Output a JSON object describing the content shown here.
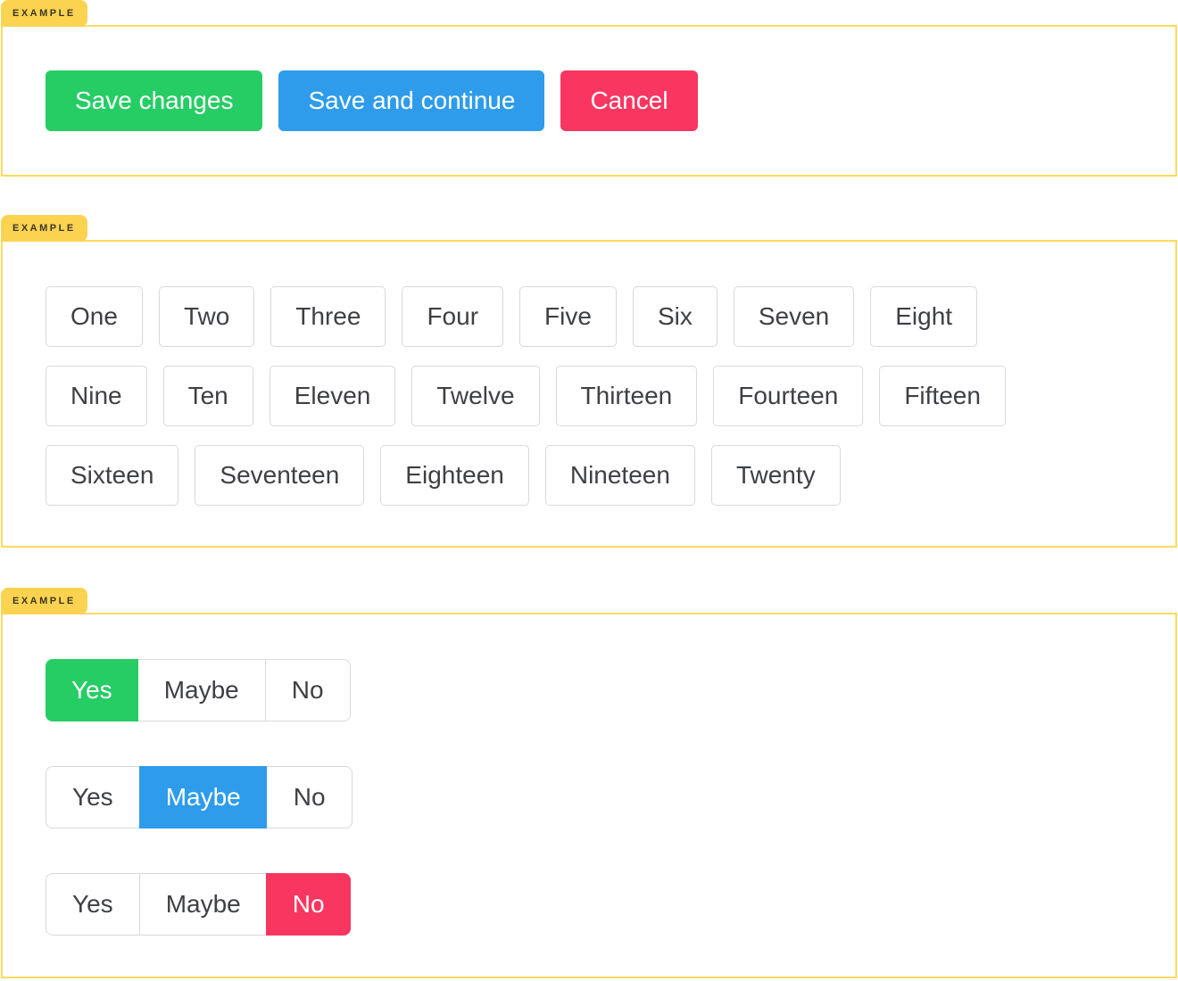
{
  "example_label": "EXAMPLE",
  "colors": {
    "tag_background": "#FBD350",
    "tag_text": "#3B3626",
    "box_border": "#FFD95C",
    "green": "#26CD65",
    "blue": "#2E9CEA",
    "red": "#F9365F",
    "outline_border": "#D9D9D9",
    "text_dark": "#3E4044"
  },
  "action_buttons": [
    {
      "label": "Save changes",
      "color": "#26CD65"
    },
    {
      "label": "Save and continue",
      "color": "#2E9CEA"
    },
    {
      "label": "Cancel",
      "color": "#F9365F"
    }
  ],
  "outline_buttons": [
    "One",
    "Two",
    "Three",
    "Four",
    "Five",
    "Six",
    "Seven",
    "Eight",
    "Nine",
    "Ten",
    "Eleven",
    "Twelve",
    "Thirteen",
    "Fourteen",
    "Fifteen",
    "Sixteen",
    "Seventeen",
    "Eighteen",
    "Nineteen",
    "Twenty"
  ],
  "button_groups": [
    {
      "options": [
        "Yes",
        "Maybe",
        "No"
      ],
      "selected": "Yes",
      "selected_color": "#26CD65"
    },
    {
      "options": [
        "Yes",
        "Maybe",
        "No"
      ],
      "selected": "Maybe",
      "selected_color": "#2E9CEA"
    },
    {
      "options": [
        "Yes",
        "Maybe",
        "No"
      ],
      "selected": "No",
      "selected_color": "#F9365F"
    }
  ]
}
